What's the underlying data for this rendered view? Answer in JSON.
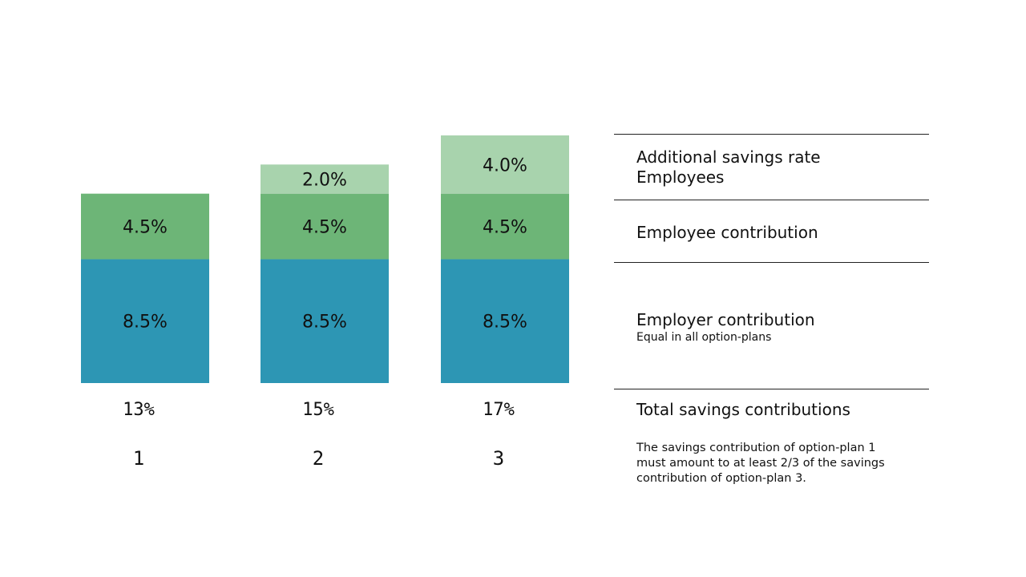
{
  "chart_data": {
    "type": "bar",
    "stacked": true,
    "categories": [
      "1",
      "2",
      "3"
    ],
    "series": [
      {
        "key": "employer",
        "values": [
          8.5,
          8.5,
          8.5
        ],
        "labels": [
          "8.5%",
          "8.5%",
          "8.5%"
        ],
        "color": "#2d96b4"
      },
      {
        "key": "employee",
        "values": [
          4.5,
          4.5,
          4.5
        ],
        "labels": [
          "4.5%",
          "4.5%",
          "4.5%"
        ],
        "color": "#6db577"
      },
      {
        "key": "additional",
        "values": [
          0,
          2.0,
          4.0
        ],
        "labels": [
          "",
          "2.0%",
          "4.0%"
        ],
        "color": "#a8d3ad"
      }
    ],
    "totals": [
      "13%",
      "15%",
      "17%"
    ],
    "ylim": [
      0,
      17
    ],
    "grid": false
  },
  "legend": {
    "additional_line1": "Additional savings rate",
    "additional_line2": "Employees",
    "employee": "Employee contribution",
    "employer": "Employer contribution",
    "employer_sub": "Equal in all option-plans",
    "total": "Total savings contributions",
    "note_line1": "The savings contribution of option-plan 1",
    "note_line2": "must amount to at least 2/3 of the savings",
    "note_line3": "contribution of option-plan 3."
  }
}
